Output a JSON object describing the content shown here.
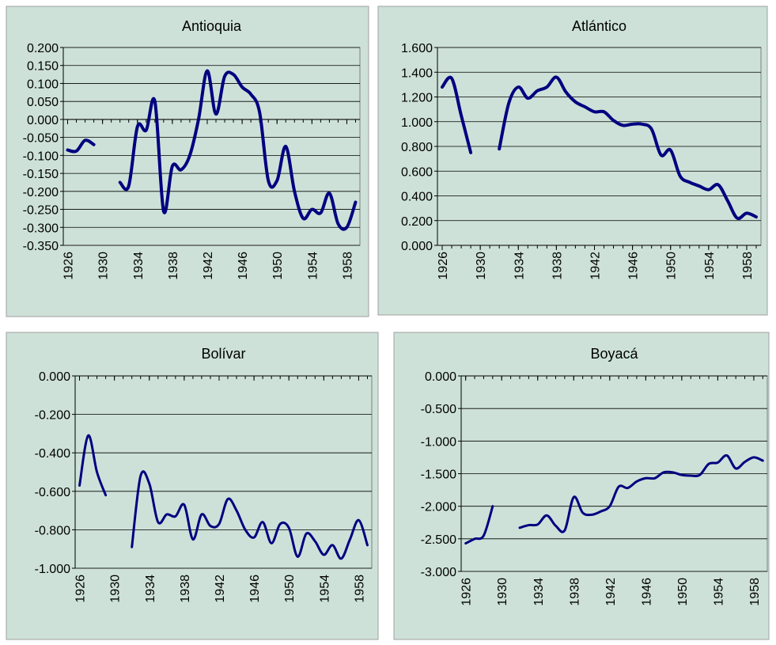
{
  "chart_data": [
    {
      "type": "line",
      "title": "Antioquia",
      "x": [
        1926,
        1927,
        1928,
        1929,
        1930,
        1931,
        1932,
        1933,
        1934,
        1935,
        1936,
        1937,
        1938,
        1939,
        1940,
        1941,
        1942,
        1943,
        1944,
        1945,
        1946,
        1947,
        1948,
        1949,
        1950,
        1951,
        1952,
        1953,
        1954,
        1955,
        1956,
        1957,
        1958,
        1959
      ],
      "series": [
        {
          "color": "#000080",
          "values": [
            -0.085,
            -0.088,
            -0.058,
            -0.07,
            null,
            null,
            -0.175,
            -0.185,
            -0.02,
            -0.03,
            0.05,
            -0.255,
            -0.13,
            -0.14,
            -0.1,
            0.0,
            0.135,
            0.015,
            0.12,
            0.125,
            0.09,
            0.07,
            0.02,
            -0.17,
            -0.17,
            -0.075,
            -0.2,
            -0.275,
            -0.25,
            -0.26,
            -0.205,
            -0.29,
            -0.3,
            -0.23
          ]
        }
      ],
      "xlim": [
        1925.5,
        1959.5
      ],
      "xticks": [
        1926,
        1930,
        1934,
        1938,
        1942,
        1946,
        1950,
        1954,
        1958
      ],
      "ylim": [
        -0.35,
        0.2
      ],
      "yticks": [
        {
          "value": -0.35,
          "label": "-0.350"
        },
        {
          "value": -0.3,
          "label": "-0.300"
        },
        {
          "value": -0.25,
          "label": "-0.250"
        },
        {
          "value": -0.2,
          "label": "-0.200"
        },
        {
          "value": -0.15,
          "label": "-0.150"
        },
        {
          "value": -0.1,
          "label": "-0.100"
        },
        {
          "value": -0.05,
          "label": "-0.050"
        },
        {
          "value": 0,
          "label": "0.000"
        },
        {
          "value": 0.05,
          "label": "0.050"
        },
        {
          "value": 0.1,
          "label": "0.100"
        },
        {
          "value": 0.15,
          "label": "0.150"
        },
        {
          "value": 0.2,
          "label": "0.200"
        }
      ],
      "grid": true
    },
    {
      "type": "line",
      "title": "Atlántico",
      "x": [
        1926,
        1927,
        1928,
        1929,
        1930,
        1931,
        1932,
        1933,
        1934,
        1935,
        1936,
        1937,
        1938,
        1939,
        1940,
        1941,
        1942,
        1943,
        1944,
        1945,
        1946,
        1947,
        1948,
        1949,
        1950,
        1951,
        1952,
        1953,
        1954,
        1955,
        1956,
        1957,
        1958,
        1959
      ],
      "series": [
        {
          "color": "#000080",
          "values": [
            1.28,
            1.35,
            1.05,
            0.75,
            null,
            null,
            0.78,
            1.15,
            1.28,
            1.19,
            1.25,
            1.28,
            1.36,
            1.24,
            1.16,
            1.12,
            1.08,
            1.08,
            1.01,
            0.97,
            0.98,
            0.98,
            0.94,
            0.73,
            0.77,
            0.56,
            0.51,
            0.48,
            0.45,
            0.49,
            0.36,
            0.22,
            0.26,
            0.23
          ]
        }
      ],
      "xlim": [
        1925.5,
        1959.5
      ],
      "xticks": [
        1926,
        1930,
        1934,
        1938,
        1942,
        1946,
        1950,
        1954,
        1958
      ],
      "ylim": [
        0,
        1.6
      ],
      "yticks": [
        {
          "value": 0,
          "label": "0.000"
        },
        {
          "value": 0.2,
          "label": "0.200"
        },
        {
          "value": 0.4,
          "label": "0.400"
        },
        {
          "value": 0.6,
          "label": "0.600"
        },
        {
          "value": 0.8,
          "label": "0.800"
        },
        {
          "value": 1,
          "label": "1.000"
        },
        {
          "value": 1.2,
          "label": "1.200"
        },
        {
          "value": 1.4,
          "label": "1.400"
        },
        {
          "value": 1.6,
          "label": "1.600"
        }
      ],
      "grid": true
    },
    {
      "type": "line",
      "title": "Bolívar",
      "x": [
        1926,
        1927,
        1928,
        1929,
        1930,
        1931,
        1932,
        1933,
        1934,
        1935,
        1936,
        1937,
        1938,
        1939,
        1940,
        1941,
        1942,
        1943,
        1944,
        1945,
        1946,
        1947,
        1948,
        1949,
        1950,
        1951,
        1952,
        1953,
        1954,
        1955,
        1956,
        1957,
        1958,
        1959
      ],
      "series": [
        {
          "color": "#000080",
          "values": [
            -0.57,
            -0.31,
            -0.5,
            -0.62,
            null,
            null,
            -0.89,
            -0.52,
            -0.56,
            -0.76,
            -0.72,
            -0.73,
            -0.67,
            -0.85,
            -0.72,
            -0.78,
            -0.77,
            -0.64,
            -0.7,
            -0.8,
            -0.84,
            -0.76,
            -0.87,
            -0.77,
            -0.79,
            -0.94,
            -0.82,
            -0.86,
            -0.93,
            -0.88,
            -0.95,
            -0.85,
            -0.75,
            -0.88
          ]
        }
      ],
      "xlim": [
        1925.5,
        1959.5
      ],
      "xticks": [
        1926,
        1930,
        1934,
        1938,
        1942,
        1946,
        1950,
        1954,
        1958
      ],
      "ylim": [
        -1,
        0
      ],
      "yticks": [
        {
          "value": -1,
          "label": "-1.000"
        },
        {
          "value": -0.8,
          "label": "-0.800"
        },
        {
          "value": -0.6,
          "label": "-0.600"
        },
        {
          "value": -0.4,
          "label": "-0.400"
        },
        {
          "value": -0.2,
          "label": "-0.200"
        },
        {
          "value": 0,
          "label": "0.000"
        }
      ],
      "grid": true
    },
    {
      "type": "line",
      "title": "Boyacá",
      "x": [
        1926,
        1927,
        1928,
        1929,
        1930,
        1931,
        1932,
        1933,
        1934,
        1935,
        1936,
        1937,
        1938,
        1939,
        1940,
        1941,
        1942,
        1943,
        1944,
        1945,
        1946,
        1947,
        1948,
        1949,
        1950,
        1951,
        1952,
        1953,
        1954,
        1955,
        1956,
        1957,
        1958,
        1959
      ],
      "series": [
        {
          "color": "#000080",
          "values": [
            -2.57,
            -2.5,
            -2.45,
            -2.0,
            null,
            null,
            -2.33,
            -2.29,
            -2.28,
            -2.14,
            -2.3,
            -2.37,
            -1.86,
            -2.1,
            -2.13,
            -2.08,
            -2.0,
            -1.7,
            -1.72,
            -1.62,
            -1.57,
            -1.57,
            -1.48,
            -1.48,
            -1.52,
            -1.53,
            -1.52,
            -1.35,
            -1.33,
            -1.22,
            -1.42,
            -1.32,
            -1.25,
            -1.3
          ]
        }
      ],
      "xlim": [
        1925.5,
        1959.5
      ],
      "xticks": [
        1926,
        1930,
        1934,
        1938,
        1942,
        1946,
        1950,
        1954,
        1958
      ],
      "ylim": [
        -3,
        0
      ],
      "yticks": [
        {
          "value": -3,
          "label": "-3.000"
        },
        {
          "value": -2.5,
          "label": "-2.500"
        },
        {
          "value": -2,
          "label": "-2.000"
        },
        {
          "value": -1.5,
          "label": "-1.500"
        },
        {
          "value": -1,
          "label": "-1.000"
        },
        {
          "value": -0.5,
          "label": "-0.500"
        },
        {
          "value": 0,
          "label": "0.000"
        }
      ],
      "grid": true
    }
  ]
}
